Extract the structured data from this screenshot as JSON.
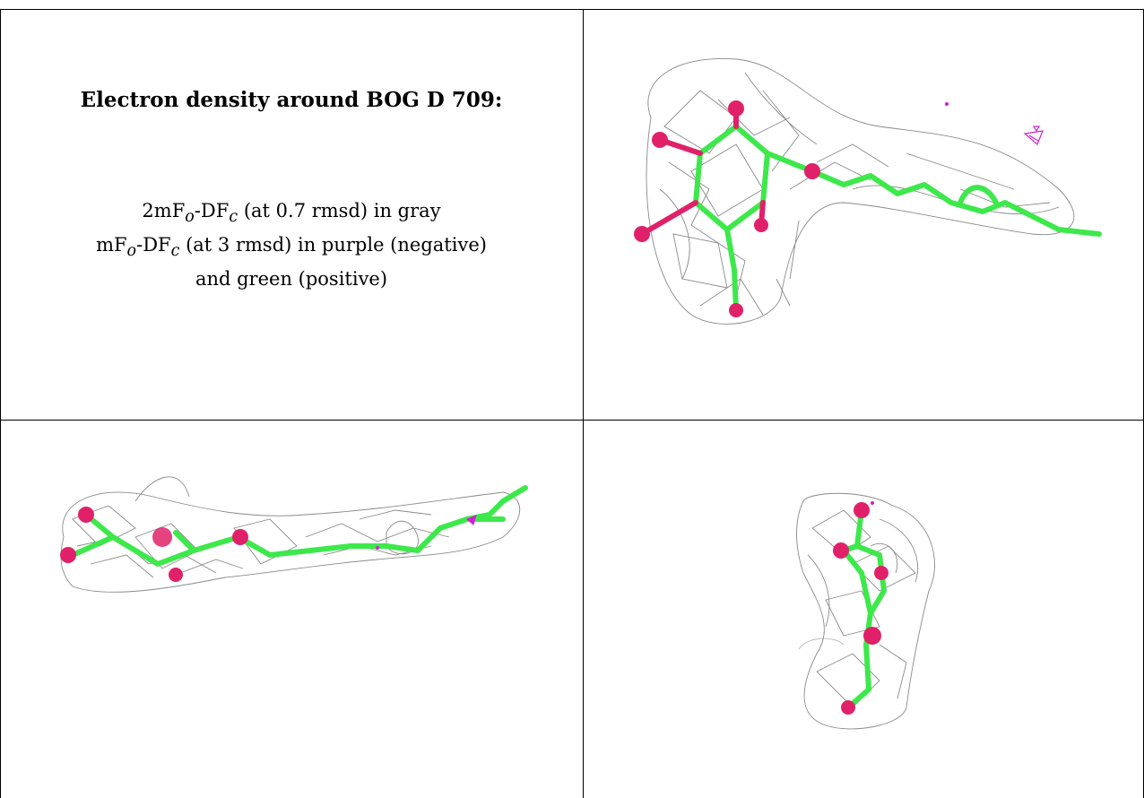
{
  "caption": {
    "title": "Electron density around BOG D 709:",
    "line1": {
      "a": "2mF",
      "o": "o",
      "b": "-DF",
      "c": "c",
      "rest": " (at 0.7 rmsd) in gray"
    },
    "line2": {
      "a": "mF",
      "o": "o",
      "b": "-DF",
      "c": "c",
      "rest": " (at 3 rmsd) in purple (negative)"
    },
    "line3": "and green (positive)"
  },
  "colors": {
    "mesh_2fofc": "#8a8a8a",
    "carbon": "#3de84b",
    "oxygen": "#e0216a",
    "negative_difference": "#d020d0",
    "positive_difference": "#30e040"
  },
  "views": [
    {
      "name": "view-top-right"
    },
    {
      "name": "view-bottom-left"
    },
    {
      "name": "view-bottom-right"
    }
  ]
}
